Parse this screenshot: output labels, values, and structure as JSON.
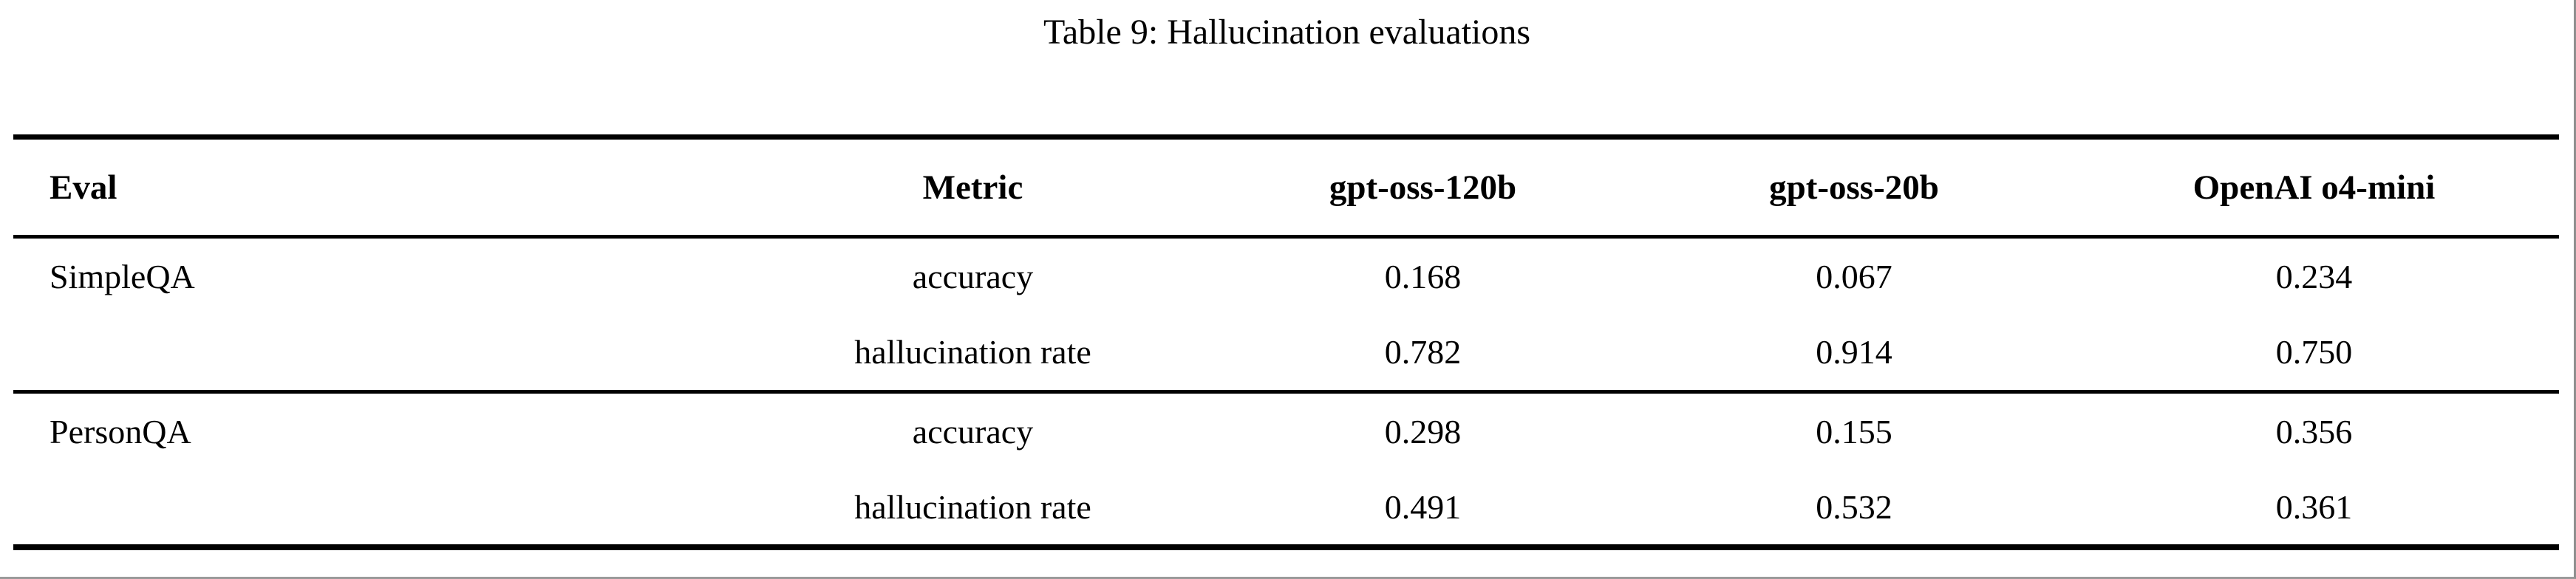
{
  "caption": "Table 9: Hallucination evaluations",
  "table": {
    "headers": [
      "Eval",
      "Metric",
      "gpt-oss-120b",
      "gpt-oss-20b",
      "OpenAI o4-mini"
    ],
    "rows": [
      [
        "SimpleQA",
        "accuracy",
        "0.168",
        "0.067",
        "0.234"
      ],
      [
        "",
        "hallucination rate",
        "0.782",
        "0.914",
        "0.750"
      ],
      [
        "PersonQA",
        "accuracy",
        "0.298",
        "0.155",
        "0.356"
      ],
      [
        "",
        "hallucination rate",
        "0.491",
        "0.532",
        "0.361"
      ]
    ]
  },
  "colors": {
    "text": "#000000",
    "background": "#ffffff",
    "rule": "#000000",
    "edge": "#8f8f8f"
  }
}
